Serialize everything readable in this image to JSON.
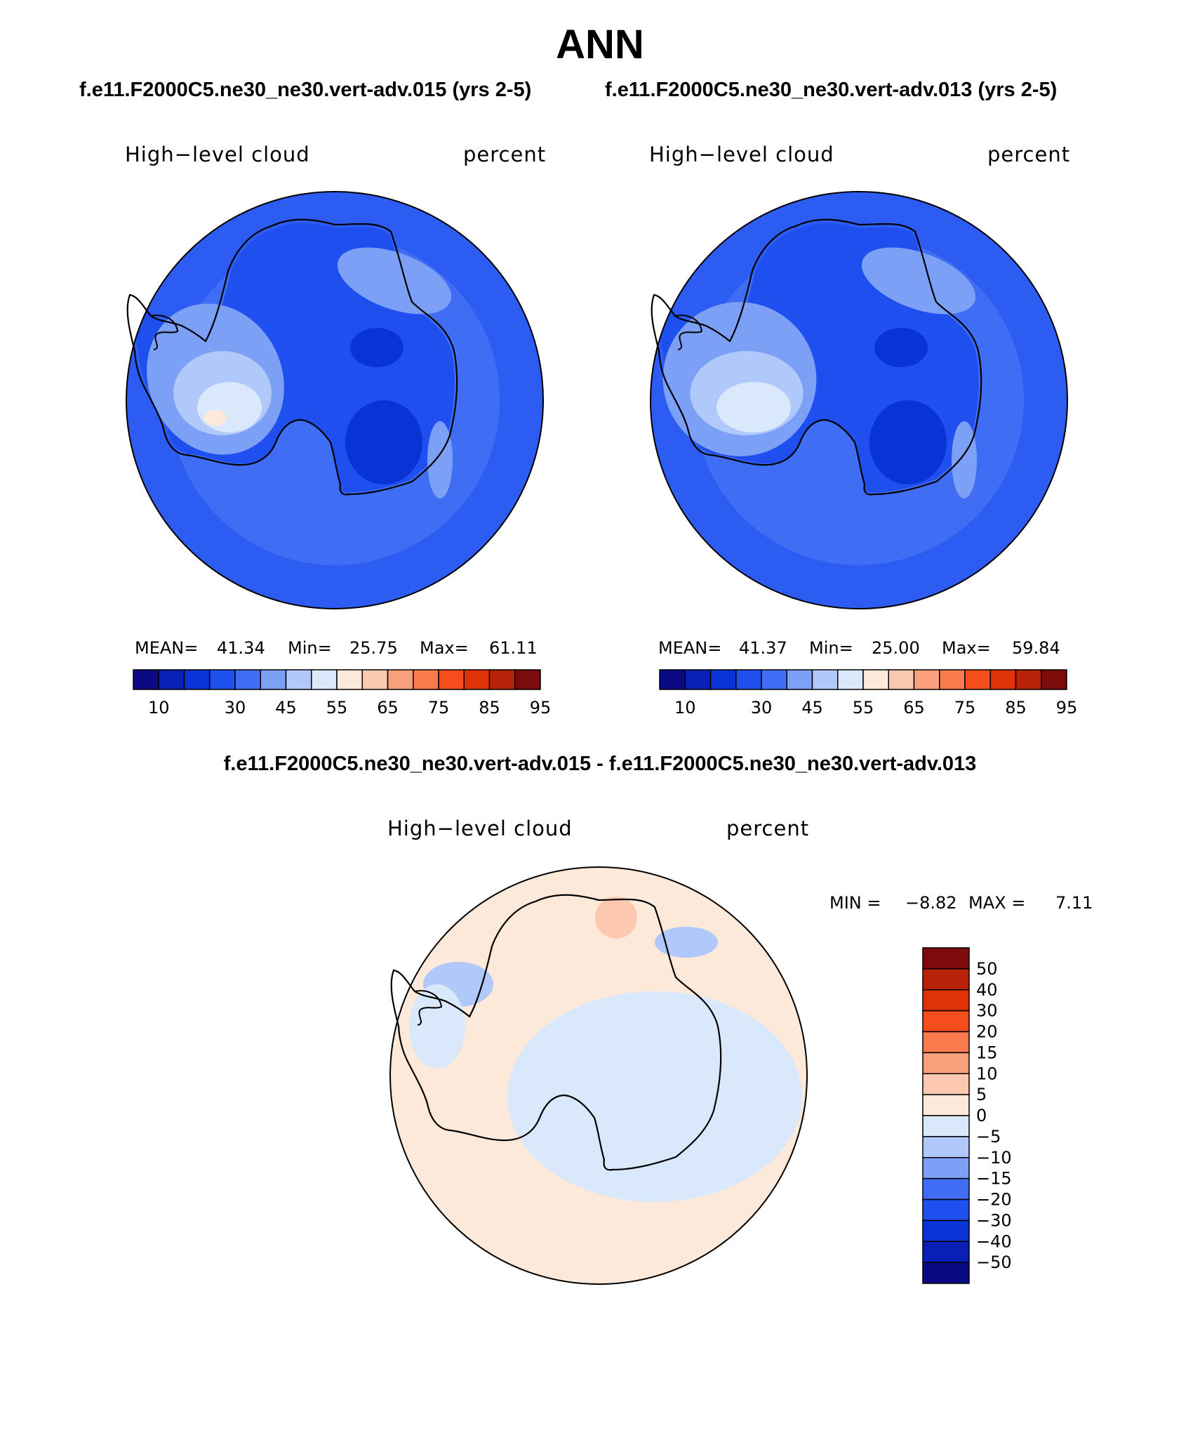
{
  "title": "ANN",
  "chart_data": [
    {
      "type": "heatmap",
      "subtitle": "f.e11.F2000C5.ne30_ne30.vert-adv.015 (yrs 2-5)",
      "variable": "High−level cloud",
      "units": "percent",
      "stats": {
        "mean_label": "MEAN=",
        "mean": "41.34",
        "min_label": "Min=",
        "min": "25.75",
        "max_label": "Max=",
        "max": "61.11"
      },
      "colorbar": {
        "orientation": "horizontal",
        "levels": [
          "10",
          "20",
          "25",
          "30",
          "40",
          "45",
          "50",
          "55",
          "60",
          "65",
          "70",
          "75",
          "80",
          "85",
          "90",
          "95"
        ],
        "tick_labels": [
          "10",
          "30",
          "45",
          "55",
          "65",
          "75",
          "85",
          "95"
        ],
        "colors": [
          "#0a0a85",
          "#0a1fb5",
          "#0a33d6",
          "#1f4fef",
          "#3f6ef5",
          "#7da0f7",
          "#b0c8fa",
          "#dae8fc",
          "#fde9d9",
          "#fcc9b0",
          "#f9a17c",
          "#f97a4c",
          "#f64d1c",
          "#df3208",
          "#b82208",
          "#7d0b0b"
        ]
      }
    },
    {
      "type": "heatmap",
      "subtitle": "f.e11.F2000C5.ne30_ne30.vert-adv.013 (yrs 2-5)",
      "variable": "High−level cloud",
      "units": "percent",
      "stats": {
        "mean_label": "MEAN=",
        "mean": "41.37",
        "min_label": "Min=",
        "min": "25.00",
        "max_label": "Max=",
        "max": "59.84"
      },
      "colorbar": {
        "orientation": "horizontal",
        "levels": [
          "10",
          "20",
          "25",
          "30",
          "40",
          "45",
          "50",
          "55",
          "60",
          "65",
          "70",
          "75",
          "80",
          "85",
          "90",
          "95"
        ],
        "tick_labels": [
          "10",
          "30",
          "45",
          "55",
          "65",
          "75",
          "85",
          "95"
        ],
        "colors": [
          "#0a0a85",
          "#0a1fb5",
          "#0a33d6",
          "#1f4fef",
          "#3f6ef5",
          "#7da0f7",
          "#b0c8fa",
          "#dae8fc",
          "#fde9d9",
          "#fcc9b0",
          "#f9a17c",
          "#f97a4c",
          "#f64d1c",
          "#df3208",
          "#b82208",
          "#7d0b0b"
        ]
      }
    },
    {
      "type": "heatmap",
      "subtitle": "f.e11.F2000C5.ne30_ne30.vert-adv.015 - f.e11.F2000C5.ne30_ne30.vert-adv.013",
      "variable": "High−level cloud",
      "units": "percent",
      "stats": {
        "min_label": "MIN =",
        "min": "−8.82",
        "max_label": "MAX =",
        "max": "7.11"
      },
      "colorbar": {
        "orientation": "vertical",
        "tick_labels": [
          "50",
          "40",
          "30",
          "20",
          "15",
          "10",
          "5",
          "0",
          "−5",
          "−10",
          "−15",
          "−20",
          "−30",
          "−40",
          "−50"
        ],
        "colors": [
          "#7d0b0b",
          "#b82208",
          "#df3208",
          "#f64d1c",
          "#f97a4c",
          "#f9a17c",
          "#fcc9b0",
          "#fde9d9",
          "#dae8fc",
          "#b0c8fa",
          "#7da0f7",
          "#3f6ef5",
          "#1f4fef",
          "#0a33d6",
          "#0a1fb5",
          "#0a0a85"
        ]
      }
    }
  ]
}
